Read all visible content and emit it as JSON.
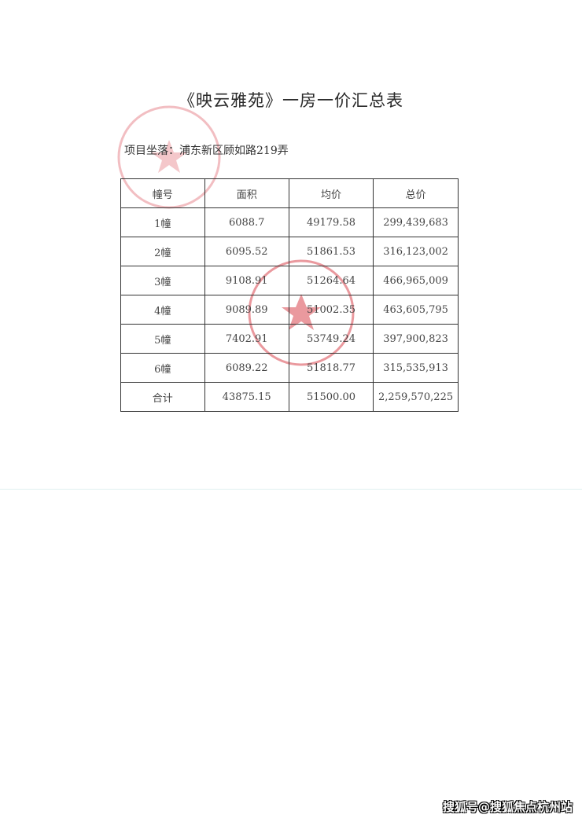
{
  "document": {
    "title": "《映云雅苑》一房一价汇总表",
    "location": "项目坐落：浦东新区顾如路219弄"
  },
  "table": {
    "headers": [
      "幢号",
      "面积",
      "均价",
      "总价"
    ],
    "rows": [
      [
        "1幢",
        "6088.7",
        "49179.58",
        "299,439,683"
      ],
      [
        "2幢",
        "6095.52",
        "51861.53",
        "316,123,002"
      ],
      [
        "3幢",
        "9108.91",
        "51264.64",
        "466,965,009"
      ],
      [
        "4幢",
        "9089.89",
        "51002.35",
        "463,605,795"
      ],
      [
        "5幢",
        "7402.91",
        "53749.24",
        "397,900,823"
      ],
      [
        "6幢",
        "6089.22",
        "51818.77",
        "315,535,913"
      ],
      [
        "合计",
        "43875.15",
        "51500.00",
        "2,259,570,225"
      ]
    ]
  },
  "stamp_color": "#d9464f",
  "watermark": "搜狐号@搜狐焦点杭州站"
}
